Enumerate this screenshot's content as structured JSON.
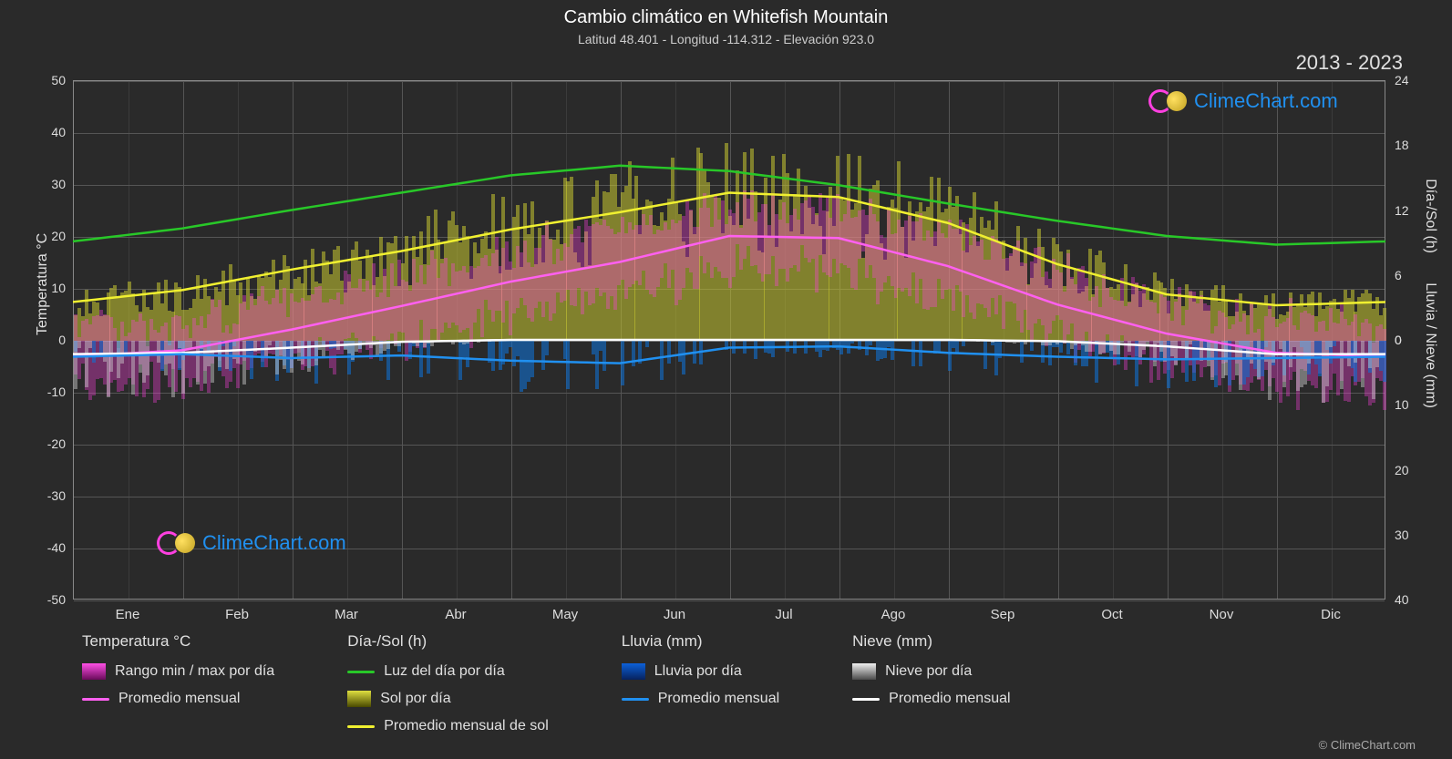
{
  "title": "Cambio climático en Whitefish Mountain",
  "subtitle": "Latitud 48.401 - Longitud -114.312 - Elevación 923.0",
  "year_range": "2013 - 2023",
  "brand": "ClimeChart.com",
  "copyright": "© ClimeChart.com",
  "chart": {
    "type": "clime-combined",
    "background_color": "#2a2a2a",
    "plot_border_color": "#888888",
    "grid_color": "#555555",
    "left_axis": {
      "label": "Temperatura °C",
      "min": -50,
      "max": 50,
      "step": 10,
      "ticks": [
        -50,
        -40,
        -30,
        -20,
        -10,
        0,
        10,
        20,
        30,
        40,
        50
      ]
    },
    "right_axis_top": {
      "label": "Día-/Sol (h)",
      "min": 0,
      "max": 24,
      "step": 6,
      "ticks": [
        0,
        6,
        12,
        18,
        24
      ]
    },
    "right_axis_bottom": {
      "label": "Lluvia / Nieve (mm)",
      "min": 0,
      "max": 40,
      "step": 10,
      "ticks": [
        0,
        10,
        20,
        30,
        40
      ]
    },
    "months": [
      "Ene",
      "Feb",
      "Mar",
      "Abr",
      "May",
      "Jun",
      "Jul",
      "Ago",
      "Sep",
      "Oct",
      "Nov",
      "Dic"
    ],
    "series": {
      "daylight_line": {
        "color": "#28c828",
        "width": 2.5,
        "monthly_hours": [
          9.1,
          10.3,
          12.0,
          13.6,
          15.2,
          16.1,
          15.6,
          14.3,
          12.6,
          11.0,
          9.6,
          8.8
        ]
      },
      "sunshine_avg_line": {
        "color": "#f0f030",
        "width": 2.5,
        "monthly_hours": [
          3.5,
          4.6,
          6.5,
          8.2,
          10.2,
          11.8,
          13.6,
          13.2,
          10.8,
          7.0,
          4.2,
          3.2
        ]
      },
      "temp_avg_line": {
        "color": "#ff60f0",
        "width": 2.5,
        "monthly_c": [
          -3.2,
          -2.0,
          2.0,
          6.5,
          11.2,
          15.0,
          20.0,
          19.6,
          14.2,
          6.8,
          1.2,
          -2.5
        ]
      },
      "rain_avg_line": {
        "color": "#2090f0",
        "width": 2.5,
        "monthly_mm": [
          2.6,
          2.2,
          2.8,
          2.4,
          3.2,
          3.6,
          1.2,
          1.0,
          2.0,
          2.6,
          3.0,
          2.8
        ]
      },
      "snow_avg_line": {
        "color": "#ffffff",
        "width": 2.5,
        "monthly_mm": [
          2.2,
          2.0,
          1.2,
          0.3,
          0.0,
          0.0,
          0.0,
          0.0,
          0.0,
          0.2,
          1.0,
          2.2
        ]
      },
      "temp_range_fill": {
        "color": "#ff40e0",
        "opacity": 0.35
      },
      "sun_daily_fill": {
        "color": "#c8c830",
        "opacity": 0.55
      },
      "rain_daily_fill": {
        "color": "#1070d0",
        "opacity": 0.6
      },
      "snow_daily_fill": {
        "color": "#d0d0d0",
        "opacity": 0.45
      }
    },
    "label_fontsize": 16,
    "tick_fontsize": 14,
    "title_fontsize": 20
  },
  "legend": {
    "cols": [
      {
        "header": "Temperatura °C",
        "items": [
          {
            "kind": "fill-magenta",
            "label": "Rango min / max por día"
          },
          {
            "kind": "line",
            "color": "#ff60f0",
            "label": "Promedio mensual"
          }
        ]
      },
      {
        "header": "Día-/Sol (h)",
        "items": [
          {
            "kind": "line",
            "color": "#28c828",
            "label": "Luz del día por día"
          },
          {
            "kind": "fill-yellow",
            "label": "Sol por día"
          },
          {
            "kind": "line",
            "color": "#f0f030",
            "label": "Promedio mensual de sol"
          }
        ]
      },
      {
        "header": "Lluvia (mm)",
        "items": [
          {
            "kind": "fill-blue",
            "label": "Lluvia por día"
          },
          {
            "kind": "line",
            "color": "#2090f0",
            "label": "Promedio mensual"
          }
        ]
      },
      {
        "header": "Nieve (mm)",
        "items": [
          {
            "kind": "fill-gray",
            "label": "Nieve por día"
          },
          {
            "kind": "line",
            "color": "#ffffff",
            "label": "Promedio mensual"
          }
        ]
      }
    ]
  }
}
